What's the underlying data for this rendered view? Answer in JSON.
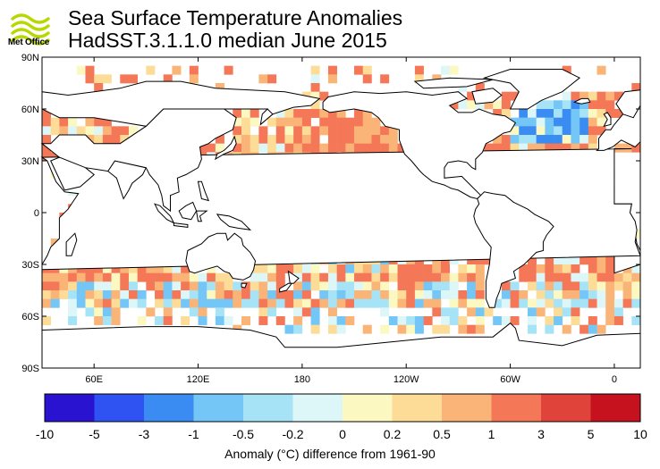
{
  "logo": {
    "text": "Met Office",
    "icon": "met-office-swoosh-icon",
    "color": "#b7d800"
  },
  "title": {
    "line1": "Sea Surface Temperature Anomalies",
    "line2": "HadSST.3.1.1.0 median June 2015"
  },
  "map": {
    "lat_labels": [
      "90N",
      "60N",
      "30N",
      "0",
      "30S",
      "60S",
      "90S"
    ],
    "lat_values": [
      90,
      60,
      30,
      0,
      -30,
      -60,
      -90
    ],
    "lon_labels": [
      "60E",
      "120E",
      "180",
      "120W",
      "60W",
      "0"
    ],
    "lon_values": [
      60,
      120,
      180,
      240,
      300,
      360
    ],
    "lon_range": [
      30,
      375
    ],
    "lat_range": [
      -90,
      90
    ],
    "grid_cell_deg": 5
  },
  "colorbar": {
    "labels": [
      "-10",
      "-5",
      "-3",
      "-1",
      "-0.5",
      "-0.2",
      "0",
      "0.2",
      "0.5",
      "1",
      "3",
      "5",
      "10"
    ],
    "colors": [
      "#2a13d0",
      "#2f52f2",
      "#3b8cf2",
      "#74c6f7",
      "#a7e3f7",
      "#ddf6f7",
      "#fbf8c2",
      "#fcdc96",
      "#fbb477",
      "#f47858",
      "#e0433a",
      "#c5121e"
    ],
    "title": "Anomaly (°C) difference from 1961-90"
  }
}
